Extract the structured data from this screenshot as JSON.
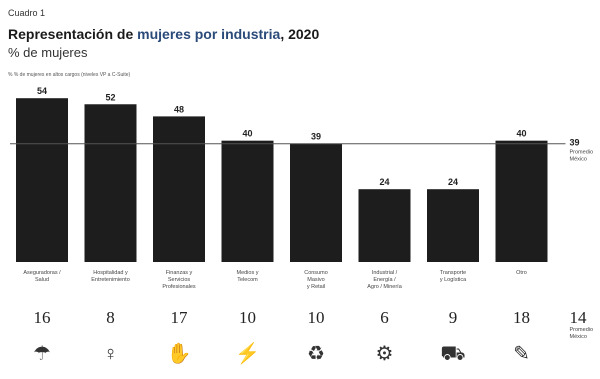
{
  "header": {
    "cuadro": "Cuadro 1",
    "title_part1": "Representación de ",
    "title_highlight": "mujeres por industria",
    "title_part2": ", 2020",
    "subtitle": "% de mujeres",
    "note": "%  % de mujeres en altos cargos (niveles VP a C-Suite)"
  },
  "chart_data": {
    "type": "bar",
    "categories": [
      [
        "Aseguradoras /",
        "Salud"
      ],
      [
        "Hospitalidad y",
        "Entretenimiento"
      ],
      [
        "Finanzas y",
        "Servicios",
        "Profesionales"
      ],
      [
        "Medios y",
        "Telecom"
      ],
      [
        "Consumo",
        "Masivo",
        "y Retail"
      ],
      [
        "Industrial /",
        "Energía /",
        "Agro / Minería"
      ],
      [
        "Transporte",
        "y Logística"
      ],
      [
        "Otro"
      ]
    ],
    "values": [
      54,
      52,
      48,
      40,
      39,
      24,
      24,
      40
    ],
    "senior_values": [
      16,
      8,
      17,
      10,
      10,
      6,
      9,
      18
    ],
    "average": {
      "value": 39,
      "label": [
        "Promedio",
        "México"
      ]
    },
    "senior_average": {
      "value": 14,
      "label": [
        "Promedio",
        "México"
      ]
    },
    "ylim": [
      0,
      60
    ],
    "icons": [
      "umbrella-icon",
      "person-arms-up-icon",
      "hand-coin-icon",
      "antenna-icon",
      "basket-icon",
      "gear-icon",
      "truck-icon",
      "document-icon"
    ],
    "icon_glyphs": [
      "☂",
      "♀",
      "✋",
      "⚡",
      "♻",
      "⚙",
      "⛟",
      "✎"
    ],
    "colors": {
      "bar": "#1d1d1d",
      "avg_line": "#555555",
      "highlight": "#2a4a7a"
    }
  }
}
